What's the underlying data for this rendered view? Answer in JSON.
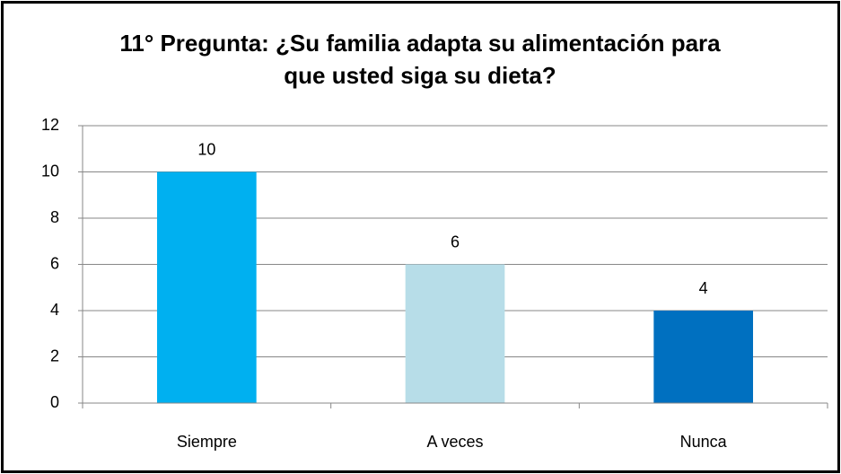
{
  "chart_data": {
    "type": "bar",
    "title": "11° Pregunta: ¿Su familia adapta su alimentación para que usted siga su dieta?",
    "categories": [
      "Siempre",
      "A veces",
      "Nunca"
    ],
    "values": [
      10,
      6,
      4
    ],
    "colors": [
      "#00b0f0",
      "#b7dde8",
      "#0070c0"
    ],
    "ylim": [
      0,
      12
    ],
    "yticks": [
      0,
      2,
      4,
      6,
      8,
      10,
      12
    ],
    "grid": true
  }
}
